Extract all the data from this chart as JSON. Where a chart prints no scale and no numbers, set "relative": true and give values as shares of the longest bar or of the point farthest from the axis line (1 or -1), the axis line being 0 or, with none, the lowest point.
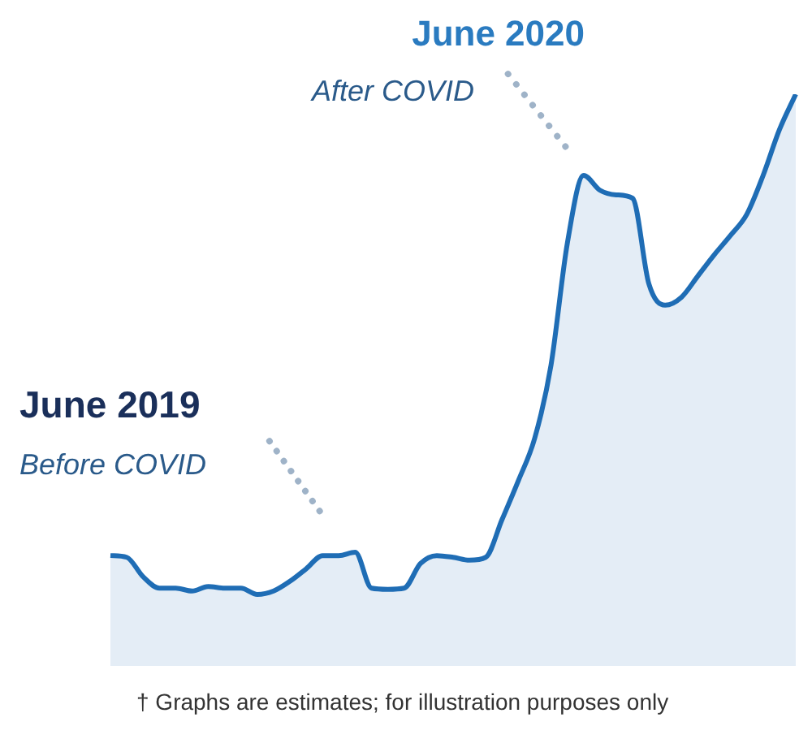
{
  "chart_data": {
    "type": "area",
    "relative": true,
    "color": "#1f6db5",
    "categories": [
      null,
      null,
      null,
      null,
      null,
      null,
      null,
      null,
      null,
      null,
      null,
      null,
      null,
      null,
      null,
      null,
      null,
      null,
      null,
      null,
      null,
      null,
      null,
      null,
      null,
      null,
      null,
      null,
      null,
      null,
      null,
      null,
      null,
      null,
      null,
      null,
      null,
      null,
      null,
      null,
      null,
      null,
      null
    ],
    "values": [
      0.193,
      0.19,
      0.156,
      0.136,
      0.136,
      0.131,
      0.139,
      0.136,
      0.136,
      0.125,
      0.131,
      0.148,
      0.17,
      0.193,
      0.193,
      0.199,
      0.136,
      0.134,
      0.136,
      0.179,
      0.193,
      0.19,
      0.185,
      0.19,
      0.256,
      0.324,
      0.398,
      0.526,
      0.739,
      0.858,
      0.832,
      0.824,
      0.818,
      0.668,
      0.631,
      0.645,
      0.682,
      0.719,
      0.753,
      0.79,
      0.858,
      0.938,
      1.0
    ],
    "annotations": [
      "June 2020",
      "After COVID",
      "June 2019",
      "Before COVID",
      "† Graphs are estimates; for illustration purposes only"
    ],
    "legend": false
  }
}
